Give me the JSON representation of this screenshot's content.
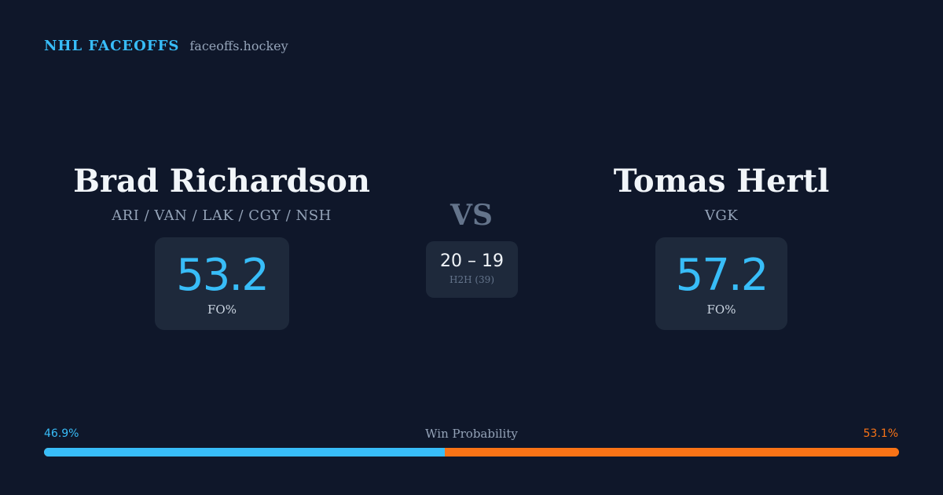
{
  "brand": {
    "title": "NHL FACEOFFS",
    "domain": "faceoffs.hockey"
  },
  "player_left": {
    "name": "Brad Richardson",
    "teams": "ARI / VAN / LAK / CGY / NSH",
    "fo_pct": "53.2",
    "fo_label": "FO%"
  },
  "player_right": {
    "name": "Tomas Hertl",
    "teams": "VGK",
    "fo_pct": "57.2",
    "fo_label": "FO%"
  },
  "vs_label": "VS",
  "head_to_head": {
    "score": "20 – 19",
    "label": "H2H (39)"
  },
  "win_probability": {
    "title": "Win Probability",
    "left_label": "46.9%",
    "right_label": "53.1%",
    "left_value": 46.9,
    "right_value": 53.1,
    "left_color": "#38bdf8",
    "right_color": "#f97316"
  }
}
